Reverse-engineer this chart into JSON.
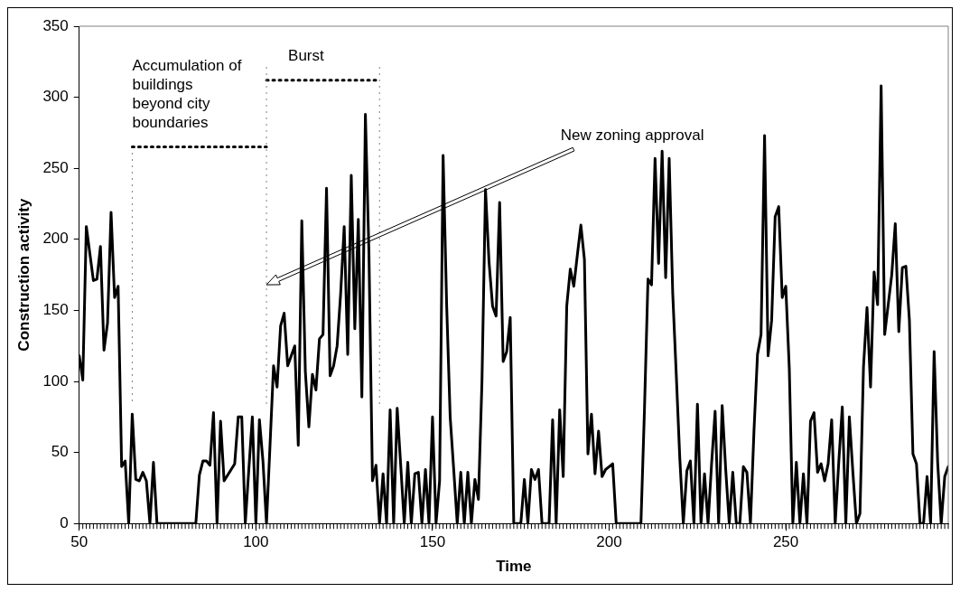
{
  "chart_data": {
    "type": "line",
    "xlabel": "Time",
    "ylabel": "Construction activity",
    "xlim": [
      50,
      296
    ],
    "xticks": [
      50,
      100,
      150,
      200,
      250
    ],
    "ylim": [
      0,
      350
    ],
    "yticks": [
      0,
      50,
      100,
      150,
      200,
      250,
      300,
      350
    ],
    "grid": false,
    "legend": false,
    "marker": "none",
    "line_style": "solid",
    "series": [
      {
        "color": "#000000",
        "x": [
          50,
          51,
          52,
          53,
          54,
          55,
          56,
          57,
          58,
          59,
          60,
          61,
          62,
          63,
          64,
          65,
          66,
          67,
          68,
          69,
          70,
          71,
          72,
          73,
          74,
          75,
          76,
          77,
          78,
          79,
          80,
          81,
          82,
          83,
          84,
          85,
          86,
          87,
          88,
          89,
          90,
          91,
          92,
          93,
          94,
          95,
          96,
          97,
          98,
          99,
          100,
          101,
          102,
          103,
          104,
          105,
          106,
          107,
          108,
          109,
          110,
          111,
          112,
          113,
          114,
          115,
          116,
          117,
          118,
          119,
          120,
          121,
          122,
          123,
          124,
          125,
          126,
          127,
          128,
          129,
          130,
          131,
          132,
          133,
          134,
          135,
          136,
          137,
          138,
          139,
          140,
          141,
          142,
          143,
          144,
          145,
          146,
          147,
          148,
          149,
          150,
          151,
          152,
          153,
          154,
          155,
          156,
          157,
          158,
          159,
          160,
          161,
          162,
          163,
          164,
          165,
          166,
          167,
          168,
          169,
          170,
          171,
          172,
          173,
          174,
          175,
          176,
          177,
          178,
          179,
          180,
          181,
          182,
          183,
          184,
          185,
          186,
          187,
          188,
          189,
          190,
          191,
          192,
          193,
          194,
          195,
          196,
          197,
          198,
          199,
          200,
          201,
          202,
          203,
          204,
          205,
          206,
          207,
          208,
          209,
          210,
          211,
          212,
          213,
          214,
          215,
          216,
          217,
          218,
          219,
          220,
          221,
          222,
          223,
          224,
          225,
          226,
          227,
          228,
          229,
          230,
          231,
          232,
          233,
          234,
          235,
          236,
          237,
          238,
          239,
          240,
          241,
          242,
          243,
          244,
          245,
          246,
          247,
          248,
          249,
          250,
          251,
          252,
          253,
          254,
          255,
          256,
          257,
          258,
          259,
          260,
          261,
          262,
          263,
          264,
          265,
          266,
          267,
          268,
          269,
          270,
          271,
          272,
          273,
          274,
          275,
          276,
          277,
          278,
          279,
          280,
          281,
          282,
          283,
          284,
          285,
          286,
          287,
          288,
          289,
          290,
          291,
          292,
          293,
          294,
          295,
          296
        ],
        "values": [
          118,
          101,
          209,
          190,
          171,
          172,
          195,
          122,
          141,
          219,
          159,
          167,
          40,
          44,
          0,
          77,
          31,
          30,
          36,
          30,
          0,
          43,
          0,
          0,
          0,
          0,
          0,
          0,
          0,
          0,
          0,
          0,
          0,
          0,
          34,
          44,
          44,
          41,
          78,
          0,
          72,
          30,
          34,
          38,
          42,
          75,
          75,
          0,
          38,
          75,
          0,
          73,
          44,
          0,
          55,
          111,
          96,
          139,
          148,
          111,
          118,
          125,
          55,
          213,
          107,
          68,
          105,
          94,
          130,
          133,
          236,
          104,
          111,
          125,
          162,
          209,
          119,
          245,
          137,
          214,
          89,
          288,
          191,
          30,
          41,
          0,
          35,
          0,
          80,
          0,
          81,
          41,
          0,
          43,
          0,
          35,
          36,
          0,
          38,
          0,
          75,
          0,
          30,
          259,
          154,
          75,
          38,
          0,
          36,
          0,
          36,
          0,
          31,
          17,
          100,
          235,
          184,
          153,
          146,
          226,
          114,
          121,
          145,
          0,
          0,
          0,
          31,
          0,
          38,
          31,
          38,
          0,
          0,
          0,
          73,
          0,
          80,
          33,
          153,
          179,
          167,
          189,
          210,
          186,
          49,
          77,
          35,
          65,
          33,
          38,
          40,
          42,
          0,
          0,
          0,
          0,
          0,
          0,
          0,
          0,
          80,
          172,
          168,
          257,
          183,
          262,
          173,
          257,
          162,
          105,
          46,
          0,
          37,
          44,
          0,
          84,
          0,
          35,
          0,
          42,
          79,
          0,
          83,
          38,
          0,
          36,
          0,
          0,
          40,
          36,
          0,
          65,
          119,
          133,
          273,
          118,
          143,
          216,
          223,
          159,
          167,
          109,
          0,
          43,
          0,
          35,
          0,
          72,
          78,
          36,
          42,
          30,
          42,
          73,
          0,
          43,
          82,
          0,
          75,
          36,
          0,
          7,
          110,
          152,
          96,
          177,
          154,
          308,
          133,
          154,
          175,
          211,
          135,
          180,
          181,
          143,
          49,
          42,
          0,
          0,
          33,
          0,
          121,
          43,
          0,
          33,
          40
        ]
      },
      {
        "type": "line",
        "color": "#000000",
        "line_style": "dotted",
        "x": [
          65,
          103
        ],
        "values": [
          265,
          265
        ]
      },
      {
        "type": "line",
        "color": "#000000",
        "line_style": "dotted",
        "x": [
          103,
          135
        ],
        "values": [
          312,
          312
        ]
      }
    ],
    "ref_lines": [
      {
        "axis": "x",
        "value": 65,
        "color": "#808080",
        "line_style": "dotted"
      },
      {
        "axis": "x",
        "value": 103,
        "color": "#808080",
        "line_style": "dotted"
      },
      {
        "axis": "x",
        "value": 135,
        "color": "#808080",
        "line_style": "dotted"
      }
    ],
    "annotations": [
      "Accumulation of buildings beyond city boundaries",
      "Burst",
      "New zoning approval"
    ]
  }
}
